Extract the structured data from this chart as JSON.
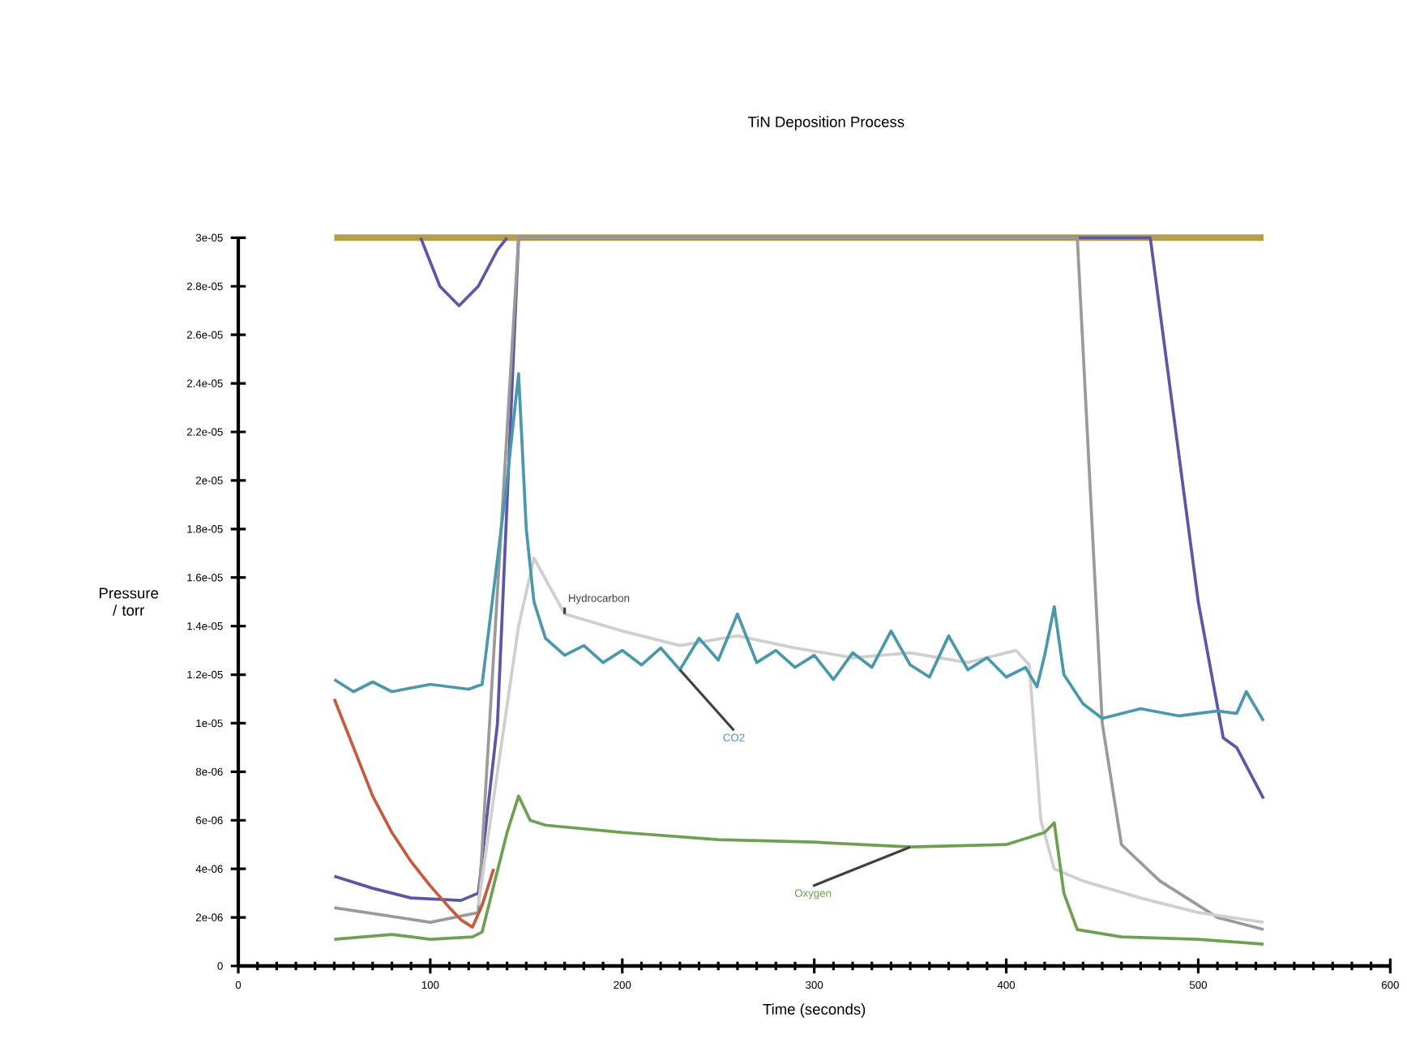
{
  "chart_data": {
    "type": "line",
    "title": "TiN Deposition Process",
    "xlabel": "Time (seconds)",
    "ylabel": "Pressure / torr",
    "xlim": [
      0,
      600
    ],
    "xticks": [
      0,
      100,
      200,
      300,
      400,
      500,
      600
    ],
    "ylim": [
      0,
      3e-05
    ],
    "yticks": [
      0,
      {
        "value": 2e-06,
        "label": "2e-06"
      },
      {
        "value": 4e-06,
        "label": "4e-06"
      },
      {
        "value": 6e-06,
        "label": "6e-06"
      },
      {
        "value": 8e-06,
        "label": "8e-06"
      },
      {
        "value": 1e-05,
        "label": "1e-05"
      },
      {
        "value": 1.2e-05,
        "label": "1.2e-05"
      },
      {
        "value": 1.4e-05,
        "label": "1.4e-05"
      },
      {
        "value": 1.6e-05,
        "label": "1.6e-05"
      },
      {
        "value": 1.8e-05,
        "label": "1.8e-05"
      },
      {
        "value": 2e-05,
        "label": "2e-05"
      },
      {
        "value": 2.2e-05,
        "label": "2.2e-05"
      },
      {
        "value": 2.4e-05,
        "label": "2.4e-05"
      },
      {
        "value": 2.6e-05,
        "label": "2.6e-05"
      },
      {
        "value": 2.8e-05,
        "label": "2.8e-05"
      },
      {
        "value": 3e-05,
        "label": "3e-05"
      }
    ],
    "grid": false,
    "legend": false,
    "marker": "none",
    "line_style": "solid",
    "series": [
      {
        "color": "#b4a04c",
        "x": [
          50,
          534
        ],
        "values": [
          3e-05,
          3e-05
        ]
      },
      {
        "color": "#5b57a6",
        "x": [
          50,
          70,
          90,
          116,
          125,
          135,
          146,
          475,
          500,
          513,
          520,
          534
        ],
        "values": [
          3.7e-06,
          3.2e-06,
          2.8e-06,
          2.7e-06,
          3e-06,
          1e-05,
          3e-05,
          3e-05,
          1.5e-05,
          9.4e-06,
          9e-06,
          6.9e-06
        ]
      },
      {
        "color": "#5b57a6",
        "x": [
          95,
          105,
          115,
          125,
          135,
          140
        ],
        "values": [
          3e-05,
          2.8e-05,
          2.72e-05,
          2.8e-05,
          2.95e-05,
          3e-05
        ]
      },
      {
        "color": "#9a9a9a",
        "x": [
          50,
          100,
          125,
          146,
          437,
          450,
          460,
          480,
          510,
          534
        ],
        "values": [
          2.4e-06,
          1.8e-06,
          2.2e-06,
          3e-05,
          3e-05,
          1e-05,
          5e-06,
          3.5e-06,
          2e-06,
          1.5e-06
        ]
      },
      {
        "name": "Hydrocarbon",
        "color": "#cfcfcf",
        "x": [
          125,
          135,
          146,
          154,
          170,
          200,
          230,
          260,
          290,
          320,
          350,
          380,
          405,
          412,
          418,
          425,
          440,
          470,
          500,
          534
        ],
        "values": [
          2.5e-06,
          8e-06,
          1.4e-05,
          1.68e-05,
          1.45e-05,
          1.38e-05,
          1.32e-05,
          1.36e-05,
          1.31e-05,
          1.27e-05,
          1.29e-05,
          1.25e-05,
          1.3e-05,
          1.24e-05,
          6e-06,
          4e-06,
          3.5e-06,
          2.8e-06,
          2.2e-06,
          1.8e-06
        ]
      },
      {
        "name": "CO2",
        "color": "#4b98ad",
        "x": [
          50,
          60,
          70,
          80,
          100,
          120,
          127,
          140,
          146,
          150,
          154,
          160,
          170,
          180,
          190,
          200,
          210,
          220,
          230,
          240,
          250,
          260,
          270,
          280,
          290,
          300,
          310,
          320,
          330,
          340,
          350,
          360,
          370,
          380,
          390,
          400,
          410,
          416,
          420,
          425,
          430,
          440,
          450,
          470,
          490,
          510,
          520,
          525,
          534
        ],
        "values": [
          1.18e-05,
          1.13e-05,
          1.17e-05,
          1.13e-05,
          1.16e-05,
          1.14e-05,
          1.16e-05,
          2e-05,
          2.44e-05,
          1.8e-05,
          1.5e-05,
          1.35e-05,
          1.28e-05,
          1.32e-05,
          1.25e-05,
          1.3e-05,
          1.24e-05,
          1.31e-05,
          1.22e-05,
          1.35e-05,
          1.26e-05,
          1.45e-05,
          1.25e-05,
          1.3e-05,
          1.23e-05,
          1.28e-05,
          1.18e-05,
          1.29e-05,
          1.23e-05,
          1.38e-05,
          1.24e-05,
          1.19e-05,
          1.36e-05,
          1.22e-05,
          1.27e-05,
          1.19e-05,
          1.23e-05,
          1.15e-05,
          1.28e-05,
          1.48e-05,
          1.2e-05,
          1.08e-05,
          1.02e-05,
          1.06e-05,
          1.03e-05,
          1.05e-05,
          1.04e-05,
          1.13e-05,
          1.01e-05
        ]
      },
      {
        "color": "#c85a3c",
        "x": [
          50,
          60,
          70,
          80,
          90,
          100,
          110,
          116,
          122,
          127,
          133
        ],
        "values": [
          1.1e-05,
          9e-06,
          7e-06,
          5.5e-06,
          4.3e-06,
          3.3e-06,
          2.4e-06,
          1.9e-06,
          1.6e-06,
          2.5e-06,
          4e-06
        ]
      },
      {
        "name": "Oxygen",
        "color": "#6f9f52",
        "x": [
          50,
          80,
          100,
          122,
          127,
          140,
          146,
          152,
          160,
          200,
          250,
          300,
          350,
          400,
          420,
          425,
          430,
          437,
          460,
          500,
          534
        ],
        "values": [
          1.1e-06,
          1.3e-06,
          1.1e-06,
          1.2e-06,
          1.4e-06,
          5.5e-06,
          7e-06,
          6e-06,
          5.8e-06,
          5.5e-06,
          5.2e-06,
          5.1e-06,
          4.9e-06,
          5e-06,
          5.5e-06,
          5.9e-06,
          3e-06,
          1.5e-06,
          1.2e-06,
          1.1e-06,
          9e-07
        ]
      }
    ]
  }
}
